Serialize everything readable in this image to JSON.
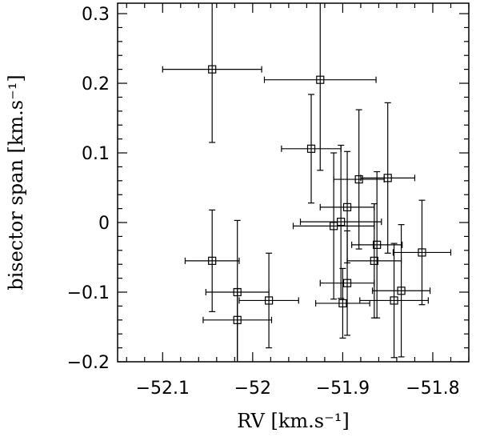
{
  "chart_data": {
    "type": "scatter",
    "xlabel": "RV [km.s⁻¹]",
    "ylabel": "bisector span [km.s⁻¹]",
    "xlim": [
      -52.15,
      -51.76
    ],
    "ylim": [
      -0.2,
      0.315
    ],
    "x_ticks": [
      {
        "value": -52.1,
        "label": "−52.1"
      },
      {
        "value": -52.0,
        "label": "−52"
      },
      {
        "value": -51.9,
        "label": "−51.9"
      },
      {
        "value": -51.8,
        "label": "−51.8"
      }
    ],
    "y_ticks": [
      {
        "value": 0.3,
        "label": "0.3"
      },
      {
        "value": 0.2,
        "label": "0.2"
      },
      {
        "value": 0.1,
        "label": "0.1"
      },
      {
        "value": 0.0,
        "label": "0"
      },
      {
        "value": -0.1,
        "label": "−0.1"
      },
      {
        "value": -0.2,
        "label": "−0.2"
      }
    ],
    "grid": false,
    "points": [
      {
        "x": -52.045,
        "y": 0.22,
        "xerr": 0.055,
        "yerr_up": 0.105,
        "yerr_down": 0.105
      },
      {
        "x": -51.925,
        "y": 0.205,
        "xerr": 0.062,
        "yerr_up": 0.13,
        "yerr_down": 0.13
      },
      {
        "x": -51.935,
        "y": 0.106,
        "xerr": 0.033,
        "yerr_up": 0.078,
        "yerr_down": 0.078
      },
      {
        "x": -51.882,
        "y": 0.062,
        "xerr": 0.028,
        "yerr_up": 0.1,
        "yerr_down": 0.1
      },
      {
        "x": -51.85,
        "y": 0.064,
        "xerr": 0.03,
        "yerr_up": 0.108,
        "yerr_down": 0.108
      },
      {
        "x": -51.895,
        "y": 0.022,
        "xerr": 0.03,
        "yerr_up": 0.08,
        "yerr_down": 0.08
      },
      {
        "x": -51.902,
        "y": 0.001,
        "xerr": 0.045,
        "yerr_up": 0.11,
        "yerr_down": 0.11
      },
      {
        "x": -51.91,
        "y": -0.005,
        "xerr": 0.045,
        "yerr_up": 0.105,
        "yerr_down": 0.105
      },
      {
        "x": -51.862,
        "y": -0.032,
        "xerr": 0.028,
        "yerr_up": 0.105,
        "yerr_down": 0.105
      },
      {
        "x": -51.812,
        "y": -0.043,
        "xerr": 0.032,
        "yerr_up": 0.075,
        "yerr_down": 0.075
      },
      {
        "x": -52.045,
        "y": -0.055,
        "xerr": 0.03,
        "yerr_up": 0.073,
        "yerr_down": 0.073
      },
      {
        "x": -51.865,
        "y": -0.055,
        "xerr": 0.03,
        "yerr_up": 0.082,
        "yerr_down": 0.082
      },
      {
        "x": -51.895,
        "y": -0.087,
        "xerr": 0.03,
        "yerr_up": 0.075,
        "yerr_down": 0.075
      },
      {
        "x": -51.835,
        "y": -0.098,
        "xerr": 0.032,
        "yerr_up": 0.095,
        "yerr_down": 0.095
      },
      {
        "x": -52.017,
        "y": -0.1,
        "xerr": 0.035,
        "yerr_up": 0.103,
        "yerr_down": 0.103
      },
      {
        "x": -51.982,
        "y": -0.112,
        "xerr": 0.033,
        "yerr_up": 0.068,
        "yerr_down": 0.068
      },
      {
        "x": -51.843,
        "y": -0.112,
        "xerr": 0.038,
        "yerr_up": 0.082,
        "yerr_down": 0.082
      },
      {
        "x": -51.9,
        "y": -0.116,
        "xerr": 0.03,
        "yerr_up": 0.05,
        "yerr_down": 0.05
      },
      {
        "x": -52.017,
        "y": -0.14,
        "xerr": 0.038,
        "yerr_up": 0.045,
        "yerr_down": 0.07
      }
    ]
  }
}
